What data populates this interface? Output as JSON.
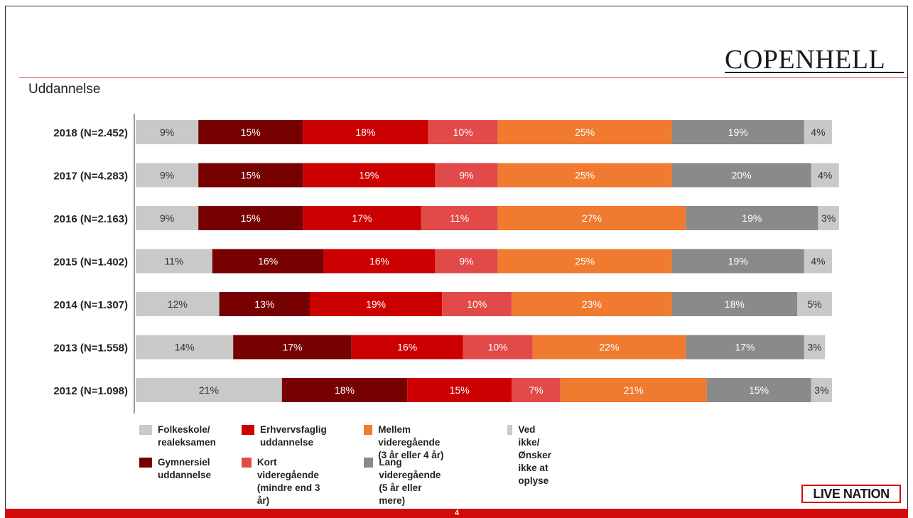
{
  "title": "Uddannelse",
  "brand": {
    "logo_text": "COPENHELL",
    "footer_logo": "LIVE NATION",
    "page_number": "4"
  },
  "colors": {
    "folkeskole": "#c9c9c9",
    "gymnasiel": "#770000",
    "erhverv": "#cc0000",
    "kort": "#e24a4a",
    "mellem": "#f07a30",
    "lang": "#8a8a8a",
    "vedikke": "#c9c9c9",
    "accent": "#d10a0a"
  },
  "legend": [
    {
      "key": "folkeskole",
      "label": "Folkeskole/\nrealeksamen"
    },
    {
      "key": "erhverv",
      "label": "Erhvervsfaglig\nuddannelse"
    },
    {
      "key": "mellem",
      "label": "Mellem videregående\n(3 år eller 4 år)"
    },
    {
      "key": "vedikke",
      "label": "Ved ikke/\nØnsker ikke at oplyse"
    },
    {
      "key": "gymnasiel",
      "label": "Gymnersiel\nuddannelse"
    },
    {
      "key": "kort",
      "label": "Kort videregående\n(mindre end 3 år)"
    },
    {
      "key": "lang",
      "label": "Lang videregående\n(5 år eller mere)"
    }
  ],
  "chart_data": {
    "type": "bar",
    "orientation": "horizontal",
    "stacked": true,
    "title": "Uddannelse",
    "categories": [
      "2018 (N=2.452)",
      "2017 (N=4.283)",
      "2016 (N=2.163)",
      "2015 (N=1.402)",
      "2014 (N=1.307)",
      "2013 (N=1.558)",
      "2012 (N=1.098)"
    ],
    "series": [
      {
        "key": "folkeskole",
        "name": "Folkeskole/ realeksamen",
        "values": [
          9,
          9,
          9,
          11,
          12,
          14,
          21
        ]
      },
      {
        "key": "gymnasiel",
        "name": "Gymnersiel uddannelse",
        "values": [
          15,
          15,
          15,
          16,
          13,
          17,
          18
        ]
      },
      {
        "key": "erhverv",
        "name": "Erhvervsfaglig uddannelse",
        "values": [
          18,
          19,
          17,
          16,
          19,
          16,
          15
        ]
      },
      {
        "key": "kort",
        "name": "Kort videregående (mindre end 3 år)",
        "values": [
          10,
          9,
          11,
          9,
          10,
          10,
          7
        ]
      },
      {
        "key": "mellem",
        "name": "Mellem videregående (3 år eller 4 år)",
        "values": [
          25,
          25,
          27,
          25,
          23,
          22,
          21
        ]
      },
      {
        "key": "lang",
        "name": "Lang videregående (5 år eller mere)",
        "values": [
          19,
          20,
          19,
          19,
          18,
          17,
          15
        ]
      },
      {
        "key": "vedikke",
        "name": "Ved ikke/ Ønsker ikke at oplyse",
        "values": [
          4,
          4,
          3,
          4,
          5,
          3,
          3
        ]
      }
    ],
    "value_suffix": "%",
    "legend_position": "bottom",
    "grid": false
  }
}
